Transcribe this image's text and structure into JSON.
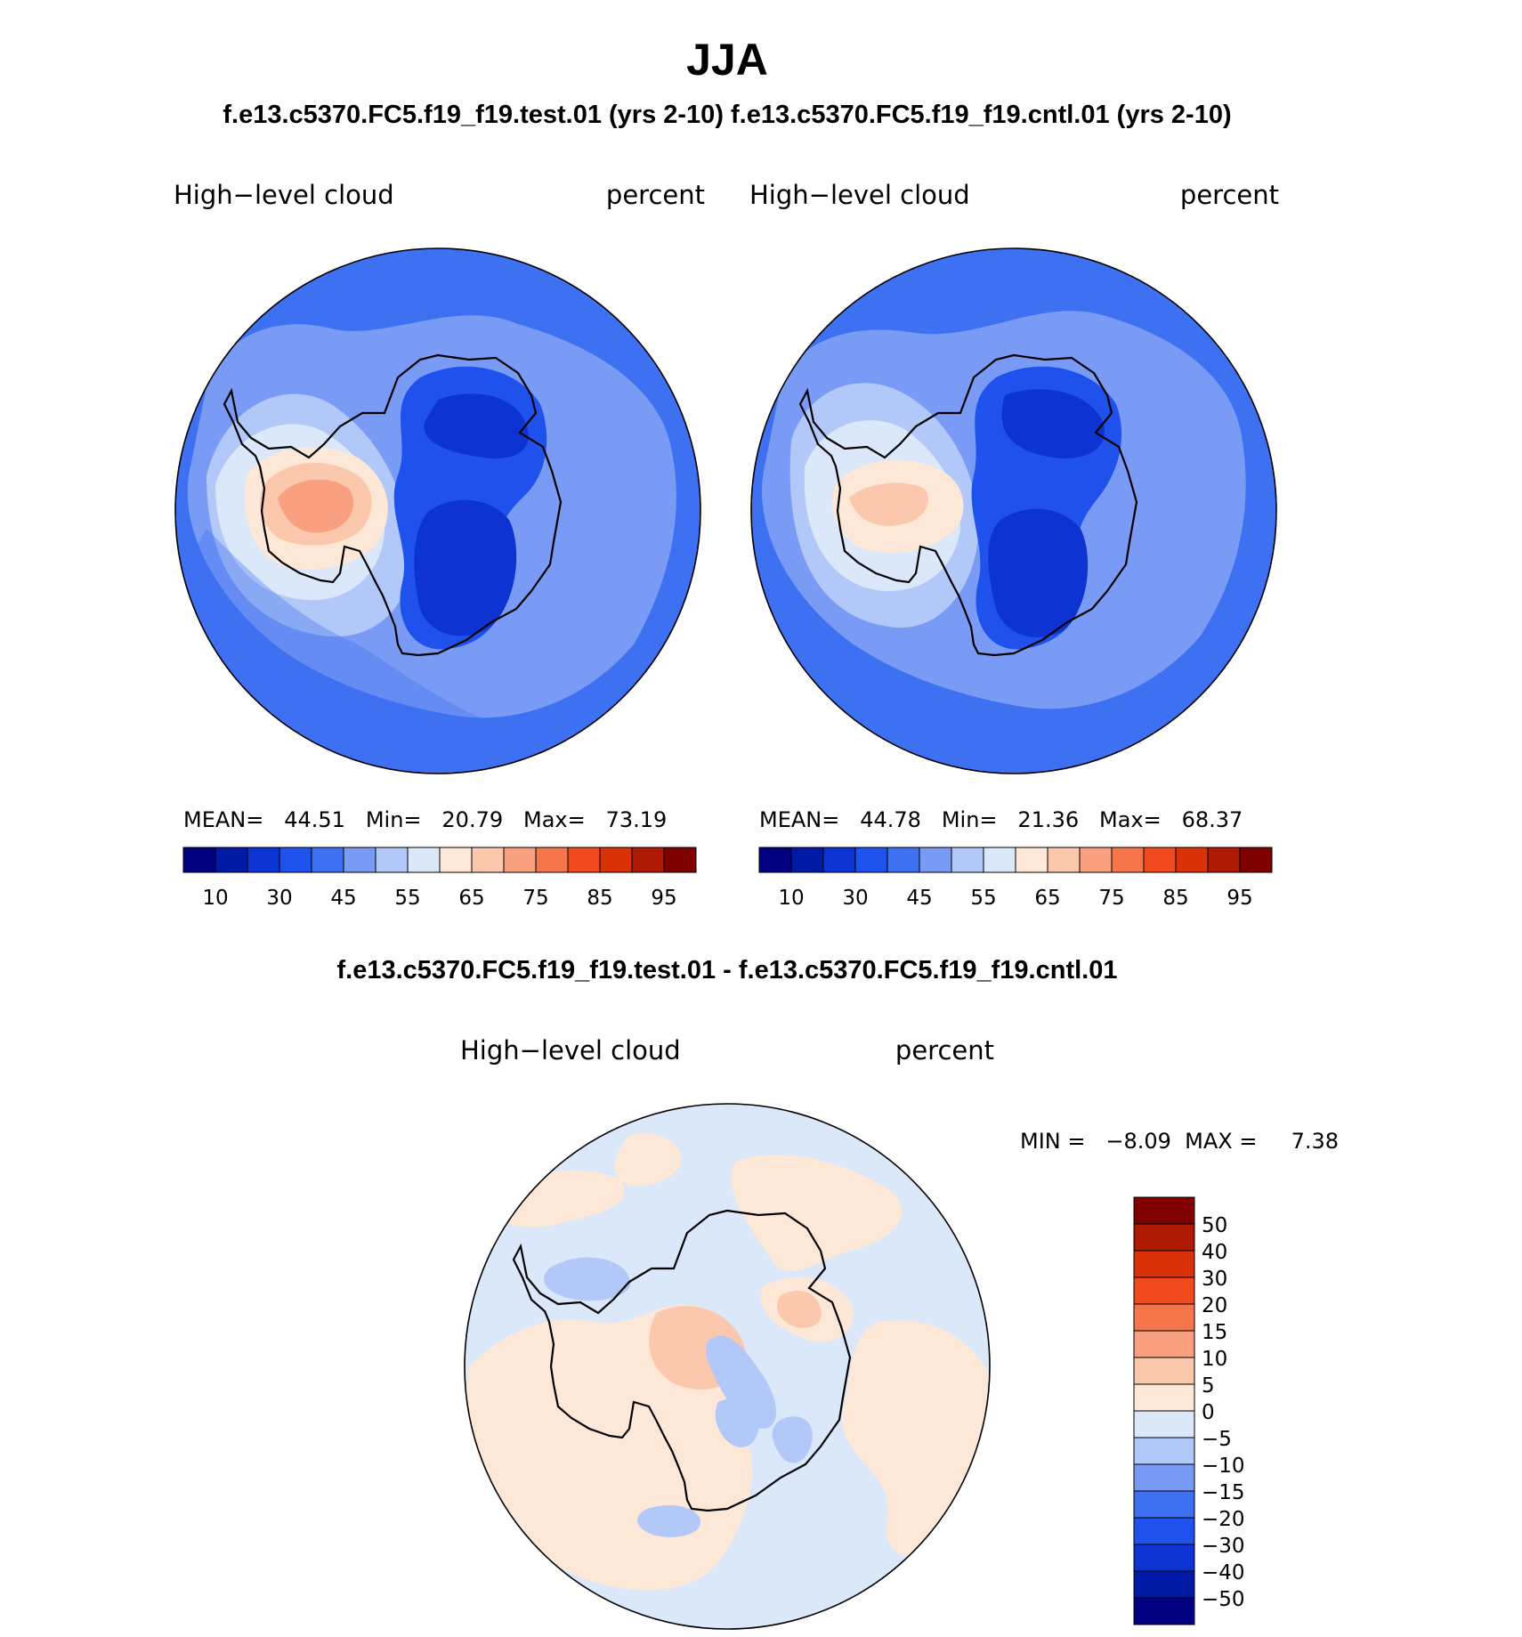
{
  "title": "JJA",
  "subtitle": "f.e13.c5370.FC5.f19_f19.test.01 (yrs 2-10) f.e13.c5370.FC5.f19_f19.cntl.01 (yrs 2-10)",
  "diff_title": "f.e13.c5370.FC5.f19_f19.test.01 - f.e13.c5370.FC5.f19_f19.cntl.01",
  "panels": [
    {
      "id": "test",
      "variable": "High−level cloud",
      "units": "percent",
      "stats": "MEAN=   44.51   Min=   20.79   Max=   73.19",
      "mean": 44.51,
      "min": 20.79,
      "max": 73.19
    },
    {
      "id": "cntl",
      "variable": "High−level cloud",
      "units": "percent",
      "stats": "MEAN=   44.78   Min=   21.36   Max=   68.37",
      "mean": 44.78,
      "min": 21.36,
      "max": 68.37
    },
    {
      "id": "diff",
      "variable": "High−level cloud",
      "units": "percent",
      "stats": "MIN =   −8.09  MAX =     7.38",
      "min": -8.09,
      "max": 7.38
    }
  ],
  "colorbar_main": {
    "colors": [
      "#000080",
      "#001aa6",
      "#0d34d3",
      "#1f52ec",
      "#3e70f2",
      "#7a9bf5",
      "#b2c8f8",
      "#dae8fa",
      "#fde8d8",
      "#fbc8ae",
      "#f8a07f",
      "#f6764b",
      "#f24a1f",
      "#d93208",
      "#ae1a04",
      "#800000"
    ],
    "tick_labels": [
      "10",
      "30",
      "45",
      "55",
      "65",
      "75",
      "85",
      "95"
    ]
  },
  "colorbar_diff": {
    "colors": [
      "#000080",
      "#001aa6",
      "#0d34d3",
      "#1f52ec",
      "#3e70f2",
      "#7a9bf5",
      "#b2c8f8",
      "#dae8fa",
      "#fde8d8",
      "#fbc8ae",
      "#f8a07f",
      "#f6764b",
      "#f24a1f",
      "#d93208",
      "#ae1a04",
      "#800000"
    ],
    "tick_labels": [
      "50",
      "40",
      "30",
      "20",
      "15",
      "10",
      "5",
      "0",
      "−5",
      "−10",
      "−15",
      "−20",
      "−30",
      "−40",
      "−50"
    ]
  }
}
